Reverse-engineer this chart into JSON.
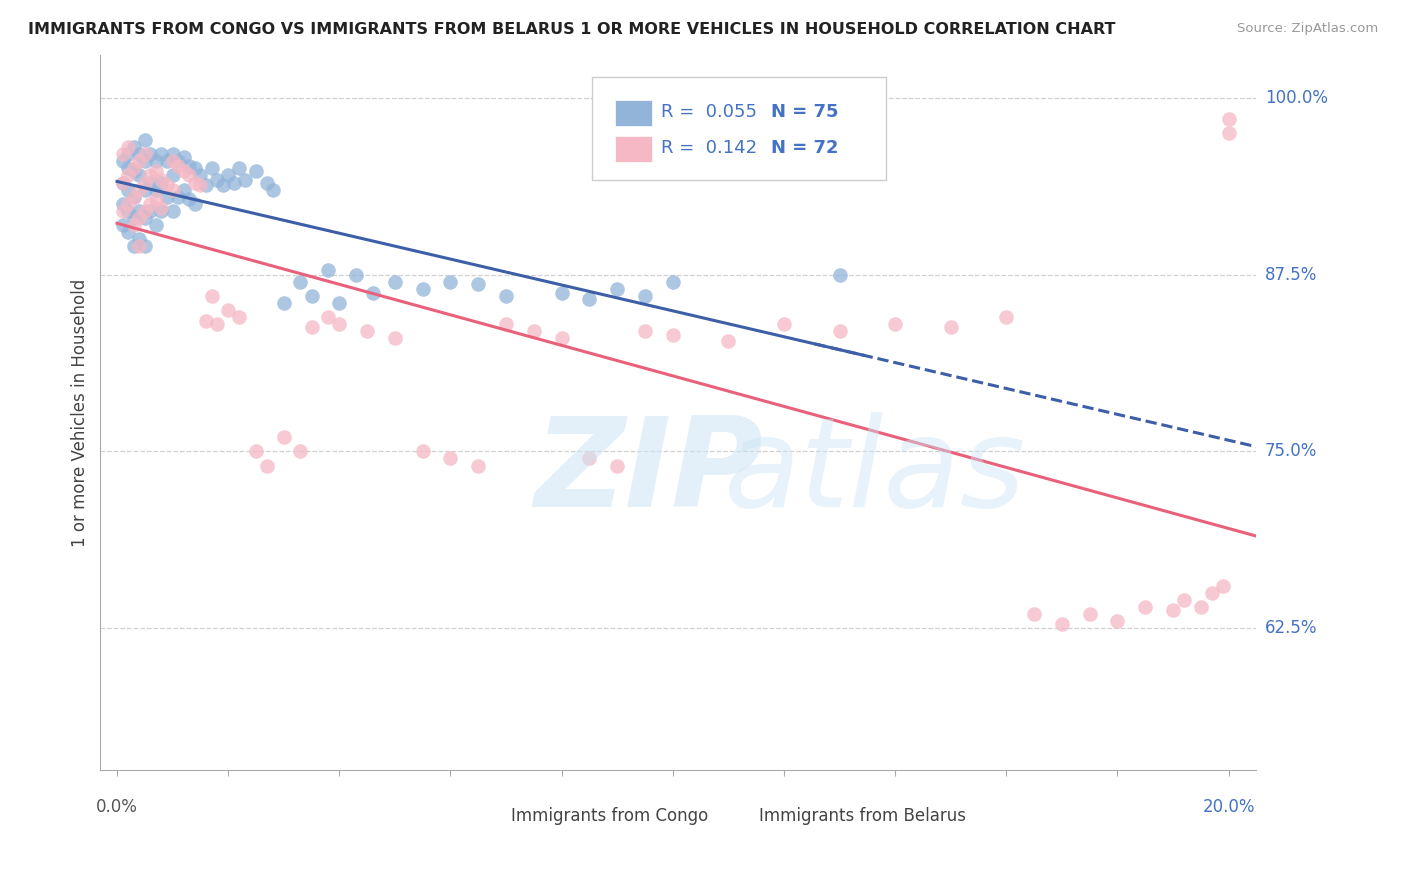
{
  "title": "IMMIGRANTS FROM CONGO VS IMMIGRANTS FROM BELARUS 1 OR MORE VEHICLES IN HOUSEHOLD CORRELATION CHART",
  "source": "Source: ZipAtlas.com",
  "ylabel": "1 or more Vehicles in Household",
  "ytick_labels": [
    "100.0%",
    "87.5%",
    "75.0%",
    "62.5%"
  ],
  "ytick_values": [
    1.0,
    0.875,
    0.75,
    0.625
  ],
  "xlim": [
    0.0,
    0.2
  ],
  "ylim": [
    0.525,
    1.03
  ],
  "legend_r_congo": "0.055",
  "legend_n_congo": "75",
  "legend_r_belarus": "0.142",
  "legend_n_belarus": "72",
  "congo_color": "#92b4d9",
  "belarus_color": "#f5b8c4",
  "congo_line_color": "#3d5fa8",
  "belarus_line_color": "#e8607a",
  "congo_x": [
    0.001,
    0.001,
    0.001,
    0.001,
    0.002,
    0.002,
    0.002,
    0.002,
    0.002,
    0.003,
    0.003,
    0.003,
    0.003,
    0.003,
    0.004,
    0.004,
    0.004,
    0.004,
    0.005,
    0.005,
    0.005,
    0.005,
    0.005,
    0.006,
    0.006,
    0.006,
    0.007,
    0.007,
    0.007,
    0.008,
    0.008,
    0.008,
    0.009,
    0.009,
    0.01,
    0.01,
    0.01,
    0.011,
    0.011,
    0.012,
    0.012,
    0.013,
    0.013,
    0.014,
    0.014,
    0.015,
    0.016,
    0.017,
    0.018,
    0.019,
    0.02,
    0.021,
    0.022,
    0.023,
    0.025,
    0.027,
    0.028,
    0.03,
    0.033,
    0.035,
    0.038,
    0.04,
    0.043,
    0.046,
    0.05,
    0.055,
    0.06,
    0.065,
    0.07,
    0.08,
    0.085,
    0.09,
    0.095,
    0.1,
    0.13
  ],
  "congo_y": [
    0.955,
    0.94,
    0.925,
    0.91,
    0.96,
    0.95,
    0.935,
    0.92,
    0.905,
    0.965,
    0.948,
    0.93,
    0.915,
    0.895,
    0.96,
    0.945,
    0.92,
    0.9,
    0.97,
    0.955,
    0.935,
    0.915,
    0.895,
    0.96,
    0.94,
    0.92,
    0.955,
    0.935,
    0.91,
    0.96,
    0.94,
    0.92,
    0.955,
    0.93,
    0.96,
    0.945,
    0.92,
    0.955,
    0.93,
    0.958,
    0.935,
    0.952,
    0.928,
    0.95,
    0.925,
    0.945,
    0.938,
    0.95,
    0.942,
    0.938,
    0.945,
    0.94,
    0.95,
    0.942,
    0.948,
    0.94,
    0.935,
    0.855,
    0.87,
    0.86,
    0.878,
    0.855,
    0.875,
    0.862,
    0.87,
    0.865,
    0.87,
    0.868,
    0.86,
    0.862,
    0.858,
    0.865,
    0.86,
    0.87,
    0.875
  ],
  "belarus_x": [
    0.001,
    0.001,
    0.001,
    0.002,
    0.002,
    0.002,
    0.003,
    0.003,
    0.003,
    0.004,
    0.004,
    0.004,
    0.004,
    0.005,
    0.005,
    0.005,
    0.006,
    0.006,
    0.007,
    0.007,
    0.008,
    0.008,
    0.009,
    0.01,
    0.01,
    0.011,
    0.012,
    0.013,
    0.014,
    0.015,
    0.016,
    0.017,
    0.018,
    0.02,
    0.022,
    0.025,
    0.027,
    0.03,
    0.033,
    0.035,
    0.038,
    0.04,
    0.045,
    0.05,
    0.055,
    0.06,
    0.065,
    0.07,
    0.075,
    0.08,
    0.085,
    0.09,
    0.095,
    0.1,
    0.11,
    0.12,
    0.13,
    0.14,
    0.15,
    0.16,
    0.165,
    0.17,
    0.175,
    0.18,
    0.185,
    0.19,
    0.192,
    0.195,
    0.197,
    0.199,
    0.2,
    0.2
  ],
  "belarus_y": [
    0.96,
    0.94,
    0.92,
    0.965,
    0.945,
    0.925,
    0.95,
    0.93,
    0.91,
    0.955,
    0.935,
    0.915,
    0.895,
    0.96,
    0.94,
    0.92,
    0.945,
    0.925,
    0.948,
    0.928,
    0.942,
    0.922,
    0.938,
    0.955,
    0.935,
    0.952,
    0.948,
    0.945,
    0.94,
    0.938,
    0.842,
    0.86,
    0.84,
    0.85,
    0.845,
    0.75,
    0.74,
    0.76,
    0.75,
    0.838,
    0.845,
    0.84,
    0.835,
    0.83,
    0.75,
    0.745,
    0.74,
    0.84,
    0.835,
    0.83,
    0.745,
    0.74,
    0.835,
    0.832,
    0.828,
    0.84,
    0.835,
    0.84,
    0.838,
    0.845,
    0.635,
    0.628,
    0.635,
    0.63,
    0.64,
    0.638,
    0.645,
    0.64,
    0.65,
    0.655,
    0.975,
    0.985
  ]
}
